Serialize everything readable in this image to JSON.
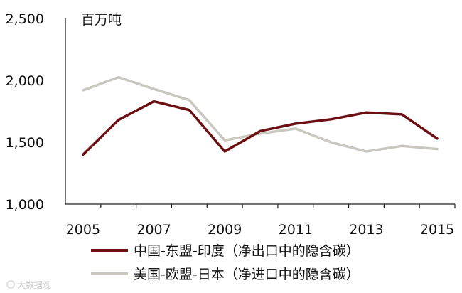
{
  "chart_data": {
    "type": "line",
    "unit_label": "百万吨",
    "x": [
      2005,
      2006,
      2007,
      2008,
      2009,
      2010,
      2011,
      2012,
      2013,
      2014,
      2015
    ],
    "x_tick_labels": [
      "2005",
      "2007",
      "2009",
      "2011",
      "2013",
      "2015"
    ],
    "y_tick_labels": [
      "1,000",
      "1,500",
      "2,000",
      "2,500"
    ],
    "ylim": [
      1000,
      2500
    ],
    "xlim": [
      2004.5,
      2015.5
    ],
    "grid": false,
    "legend_position": "bottom",
    "series": [
      {
        "name": "中国-东盟-印度（净出口中的隐含碳）",
        "color": "#6b0f12",
        "values": [
          1400,
          1680,
          1830,
          1760,
          1425,
          1590,
          1650,
          1685,
          1740,
          1725,
          1530
        ]
      },
      {
        "name": "美国-欧盟-日本（净进口中的隐含碳）",
        "color": "#c9c7bf",
        "values": [
          1920,
          2025,
          1930,
          1840,
          1515,
          1570,
          1610,
          1500,
          1425,
          1470,
          1445
        ]
      }
    ]
  },
  "watermark": "大数据观"
}
